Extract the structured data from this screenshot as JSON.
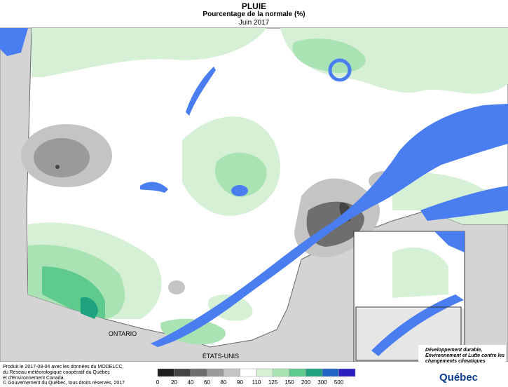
{
  "header": {
    "title": "PLUIE",
    "subtitle": "Pourcentage de la normale (%)",
    "period": "Juin 2017"
  },
  "map": {
    "labels": [
      "ONTARIO",
      "ÉTATS-UNIS"
    ]
  },
  "legend": {
    "labels": [
      "0",
      "20",
      "40",
      "60",
      "80",
      "90",
      "110",
      "125",
      "150",
      "200",
      "300",
      "500"
    ],
    "colors": [
      "#1e1e1e",
      "#444444",
      "#6e6e6e",
      "#9a9a9a",
      "#c4c4c4",
      "#ffffff",
      "#d6f0d6",
      "#a9e2b3",
      "#5fca8e",
      "#1fa37f",
      "#2166c4",
      "#2b1fc0"
    ]
  },
  "credits": {
    "lines": [
      "Produit le 2017-08-04 avec les données du MODELCC,",
      "du Réseau météorologique coopératif du Québec",
      "et d'Environnement Canada."
    ],
    "copyright": "© Gouvernement du Québec, tous droits réservés, 2017"
  },
  "logo": {
    "ministry": "Développement durable, Environnement et Lutte contre les changements climatiques",
    "name": "Québec"
  }
}
